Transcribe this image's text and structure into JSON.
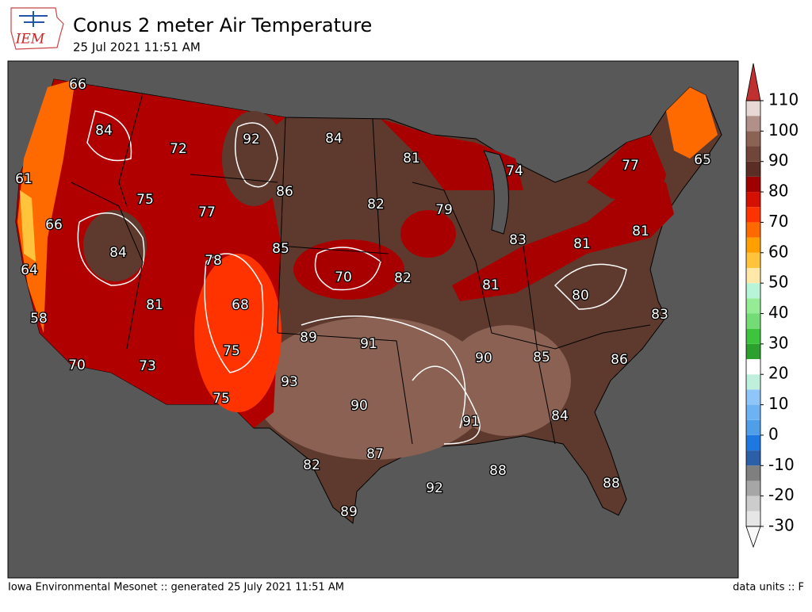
{
  "header": {
    "title": "Conus 2 meter Air Temperature",
    "subtitle": "25 Jul 2021 11:51 AM",
    "logo": "IEM"
  },
  "footer": {
    "left": "Iowa Environmental Mesonet :: generated 25 July 2021 11:51 AM",
    "right": "data units :: F"
  },
  "map": {
    "labels": [
      66,
      84,
      61,
      72,
      92,
      84,
      81,
      74,
      77,
      65,
      75,
      86,
      82,
      79,
      66,
      84,
      77,
      85,
      78,
      83,
      81,
      81,
      64,
      70,
      82,
      81,
      80,
      68,
      81,
      58,
      89,
      91,
      90,
      85,
      86,
      83,
      75,
      70,
      73,
      93,
      90,
      91,
      84,
      75,
      82,
      87,
      88,
      92,
      88,
      89
    ],
    "colorbar": {
      "ticks": [
        -30,
        -20,
        -10,
        0,
        10,
        20,
        30,
        40,
        50,
        60,
        70,
        80,
        90,
        100,
        110
      ],
      "levels": [
        -30,
        -25,
        -20,
        -15,
        -10,
        -5,
        0,
        5,
        10,
        15,
        20,
        25,
        30,
        35,
        40,
        45,
        50,
        55,
        60,
        65,
        70,
        75,
        80,
        85,
        90,
        95,
        100,
        105,
        110
      ],
      "colors": [
        "#e6e6e6",
        "#cccccc",
        "#a6a6a6",
        "#7f7f7f",
        "#2b5fa8",
        "#1f78e0",
        "#4f9fe8",
        "#6db3f2",
        "#8fc6fa",
        "#bff0dc",
        "#ffffff",
        "#2ca02c",
        "#3cc43c",
        "#74dc74",
        "#94ec94",
        "#b8f4d8",
        "#ffe8a8",
        "#ffc43c",
        "#ffa000",
        "#ff6a00",
        "#ff3300",
        "#d41000",
        "#a00000",
        "#5a2e25",
        "#70453a",
        "#8a6355",
        "#b09088",
        "#e8d8d4",
        "#f4c4c4"
      ],
      "under_color": "#f8f8f8",
      "over_color": "#c03030"
    }
  }
}
